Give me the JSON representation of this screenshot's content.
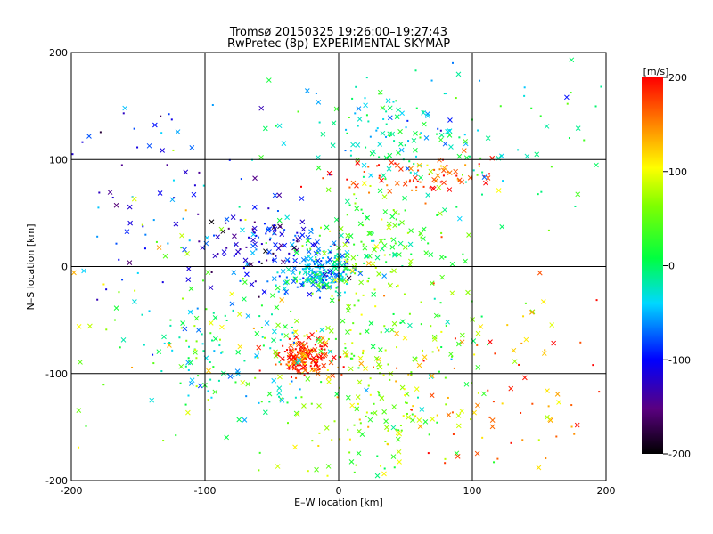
{
  "chart_data": {
    "type": "scatter",
    "title": "Tromsø 20150325 19:26:00–19:27:43",
    "subtitle": "RwPretec (8p) EXPERIMENTAL SKYMAP",
    "xlabel": "E–W location [km]",
    "ylabel": "N–S location [km]",
    "xlim": [
      -200,
      200
    ],
    "ylim": [
      -200,
      200
    ],
    "xticks": [
      "-200",
      "-100",
      "0",
      "100",
      "200"
    ],
    "yticks": [
      "-200",
      "-100",
      "0",
      "100",
      "200"
    ],
    "grid": true,
    "marker_types": [
      "x",
      "dot"
    ],
    "colorbar": {
      "label": "[m/s]",
      "range": [
        -200,
        200
      ],
      "ticks": [
        "-200",
        "-100",
        "0",
        "100",
        "200"
      ],
      "colormap": "rainbow (black-purple-blue-cyan-green-yellow-red)"
    },
    "clusters": [
      {
        "x": -25,
        "y": -85,
        "spread_x": 10,
        "spread_y": 8,
        "velocity": 180,
        "count": 180
      },
      {
        "x": -15,
        "y": -5,
        "spread_x": 15,
        "spread_y": 10,
        "velocity": -40,
        "count": 200
      },
      {
        "x": -55,
        "y": 20,
        "spread_x": 30,
        "spread_y": 15,
        "velocity": -110,
        "count": 120
      },
      {
        "x": 40,
        "y": 120,
        "spread_x": 40,
        "spread_y": 25,
        "velocity": -20,
        "count": 130
      },
      {
        "x": 60,
        "y": 85,
        "spread_x": 30,
        "spread_y": 10,
        "velocity": 170,
        "count": 80
      },
      {
        "x": 20,
        "y": 20,
        "spread_x": 30,
        "spread_y": 30,
        "velocity": 30,
        "count": 160
      },
      {
        "x": 20,
        "y": -130,
        "spread_x": 40,
        "spread_y": 40,
        "velocity": 70,
        "count": 180
      },
      {
        "x": -80,
        "y": -80,
        "spread_x": 35,
        "spread_y": 30,
        "velocity": -20,
        "count": 120
      },
      {
        "x": 40,
        "y": -60,
        "spread_x": 40,
        "spread_y": 35,
        "velocity": 40,
        "count": 100
      },
      {
        "x": 120,
        "y": -110,
        "spread_x": 50,
        "spread_y": 60,
        "velocity": 150,
        "count": 90
      },
      {
        "x": -130,
        "y": 60,
        "spread_x": 50,
        "spread_y": 60,
        "velocity": -100,
        "count": 80
      },
      {
        "x": 150,
        "y": 120,
        "spread_x": 50,
        "spread_y": 60,
        "velocity": 10,
        "count": 70
      },
      {
        "x": -120,
        "y": -60,
        "spread_x": 50,
        "spread_y": 70,
        "velocity": 80,
        "count": 70
      }
    ]
  }
}
